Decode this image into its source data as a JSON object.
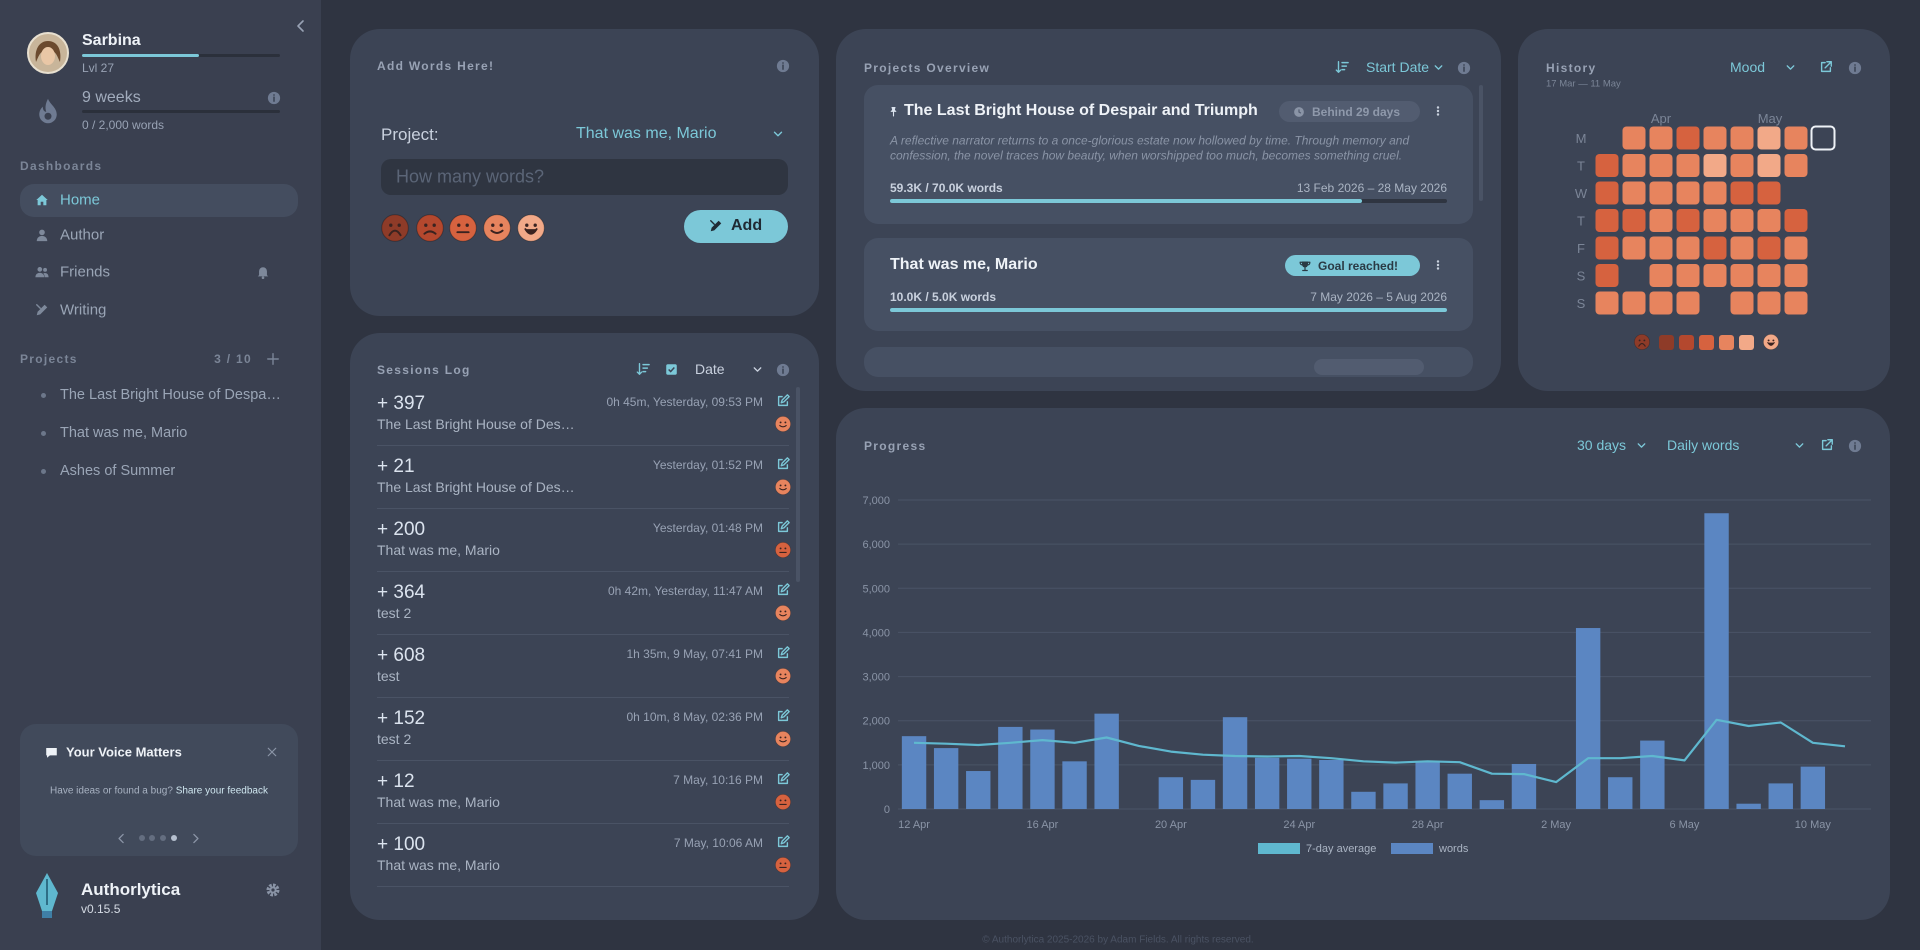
{
  "sidebar": {
    "user": {
      "name": "Sarbina",
      "level": "Lvl 27",
      "level_progress": 59,
      "streak": "9 weeks",
      "goal": "0 / 2,000 words"
    },
    "dashboards_label": "Dashboards",
    "nav": [
      "Home",
      "Author",
      "Friends",
      "Writing"
    ],
    "projects_label": "Projects",
    "projects_count": "3 / 10",
    "projects": [
      "The Last Bright House of Despair and Triumph",
      "That was me, Mario",
      "Ashes of Summer"
    ],
    "feedback": {
      "title": "Your Voice Matters",
      "text": "Have ideas or found a bug?",
      "link": "Share your feedback"
    },
    "app": {
      "name": "Authorlytica",
      "version": "v0.15.5"
    }
  },
  "add_words": {
    "title": "Add Words Here!",
    "project_label": "Project:",
    "project": "That was me, Mario",
    "placeholder": "How many words?",
    "button": "Add"
  },
  "sessions": {
    "title": "Sessions Log",
    "sort": "Date",
    "entries": [
      {
        "words": "+ 397",
        "meta": "0h 45m, Yesterday, 09:53 PM",
        "project": "The Last Bright House of Despair and Triumph",
        "mood": 4
      },
      {
        "words": "+ 21",
        "meta": "Yesterday, 01:52 PM",
        "project": "The Last Bright House of Despair and Triumph",
        "mood": 4
      },
      {
        "words": "+ 200",
        "meta": "Yesterday, 01:48 PM",
        "project": "That was me, Mario",
        "mood": 3
      },
      {
        "words": "+ 364",
        "meta": "0h 42m, Yesterday, 11:47 AM",
        "project": "test 2",
        "mood": 4
      },
      {
        "words": "+ 608",
        "meta": "1h 35m, 9 May, 07:41 PM",
        "project": "test",
        "mood": 4
      },
      {
        "words": "+ 152",
        "meta": "0h 10m, 8 May, 02:36 PM",
        "project": "test 2",
        "mood": 4
      },
      {
        "words": "+ 12",
        "meta": "7 May, 10:16 PM",
        "project": "That was me, Mario",
        "mood": 3
      },
      {
        "words": "+ 100",
        "meta": "7 May, 10:06 AM",
        "project": "That was me, Mario",
        "mood": 3
      }
    ]
  },
  "projects_overview": {
    "title": "Projects Overview",
    "sort": "Start Date",
    "projects": [
      {
        "title": "The Last Bright House of Despair and Triumph",
        "badge": "Behind 29 days",
        "description": "A reflective narrator returns to a once-glorious estate now hollowed by time. Through memory and confession, the novel traces how beauty, when worshipped too much, becomes something cruel.",
        "words": "59.3K / 70.0K words",
        "dates": "13 Feb 2026 – 28 May 2026",
        "progress": 84.7
      },
      {
        "title": "That was me, Mario",
        "badge": "Goal reached!",
        "words": "10.0K / 5.0K words",
        "dates": "7 May 2026 – 5 Aug 2026",
        "progress": 100
      }
    ]
  },
  "history": {
    "title": "History",
    "subtitle": "17 Mar — 11 May",
    "metric": "Mood",
    "months": [
      "Apr",
      "May"
    ],
    "days": [
      "M",
      "T",
      "W",
      "T",
      "F",
      "S",
      "S"
    ],
    "mood_colors": [
      "#8e3b28",
      "#b4482e",
      "#d6623f",
      "#e7845e",
      "#f2a988"
    ],
    "grid": [
      [
        null,
        4,
        4,
        3,
        4,
        4,
        5,
        4,
        null
      ],
      [
        3,
        4,
        4,
        4,
        5,
        4,
        5,
        4,
        null
      ],
      [
        3,
        4,
        4,
        4,
        4,
        3,
        3,
        null,
        null
      ],
      [
        3,
        3,
        4,
        3,
        4,
        4,
        4,
        3,
        null
      ],
      [
        3,
        4,
        4,
        4,
        3,
        4,
        3,
        4,
        null
      ],
      [
        3,
        null,
        4,
        4,
        4,
        4,
        4,
        4,
        null
      ],
      [
        4,
        4,
        4,
        4,
        null,
        4,
        4,
        4,
        null
      ]
    ]
  },
  "progress": {
    "title": "Progress",
    "range": "30 days",
    "metric": "Daily words"
  },
  "chart_data": {
    "type": "bar",
    "categories": [
      "12 Apr",
      null,
      null,
      null,
      "16 Apr",
      null,
      null,
      null,
      "20 Apr",
      null,
      null,
      null,
      "24 Apr",
      null,
      null,
      null,
      "28 Apr",
      null,
      null,
      null,
      "2 May",
      null,
      null,
      null,
      "6 May",
      null,
      null,
      null,
      "10 May",
      null
    ],
    "series": [
      {
        "name": "7-day average",
        "type": "line",
        "color": "#5fb8cf",
        "values": [
          1500,
          1480,
          1450,
          1500,
          1560,
          1500,
          1620,
          1430,
          1300,
          1230,
          1200,
          1190,
          1200,
          1150,
          1080,
          1050,
          1080,
          1060,
          800,
          790,
          610,
          1150,
          1150,
          1200,
          1100,
          2020,
          1880,
          1960,
          1500,
          1420
        ]
      },
      {
        "name": "words",
        "type": "bar",
        "color": "#5b86c2",
        "values": [
          1650,
          1380,
          860,
          1860,
          1800,
          1080,
          2160,
          0,
          720,
          660,
          2080,
          1160,
          1140,
          1110,
          390,
          580,
          1080,
          800,
          200,
          1020,
          0,
          4100,
          720,
          1550,
          0,
          6700,
          120,
          580,
          960,
          0
        ]
      }
    ],
    "ylim": [
      0,
      7000
    ],
    "yticks": [
      0,
      {
        "value": 1000,
        "label": "1,000"
      },
      {
        "value": 2000,
        "label": "2,000"
      },
      {
        "value": 3000,
        "label": "3,000"
      },
      {
        "value": 4000,
        "label": "4,000"
      },
      {
        "value": 5000,
        "label": "5,000"
      },
      {
        "value": 6000,
        "label": "6,000"
      },
      {
        "value": 7000,
        "label": "7,000"
      }
    ],
    "grid": true
  },
  "footer": "© Authorlytica 2025-2026 by Adam Fields. All rights reserved."
}
